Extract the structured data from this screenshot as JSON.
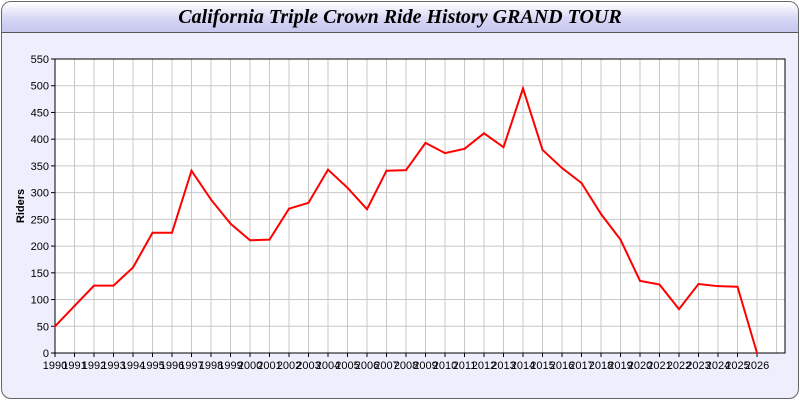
{
  "chart_data": {
    "type": "line",
    "title": "California Triple Crown Ride History GRAND TOUR",
    "xlabel": "",
    "ylabel": "Riders",
    "ylim": [
      0,
      550
    ],
    "yticks": [
      0,
      50,
      100,
      150,
      200,
      250,
      300,
      350,
      400,
      450,
      500,
      550
    ],
    "grid": true,
    "line_color": "#ff0000",
    "x": [
      1990,
      1991,
      1992,
      1993,
      1994,
      1995,
      1996,
      1997,
      1998,
      1999,
      2000,
      2001,
      2002,
      2003,
      2004,
      2005,
      2006,
      2007,
      2008,
      2009,
      2010,
      2011,
      2012,
      2013,
      2014,
      2015,
      2016,
      2017,
      2018,
      2019,
      2020,
      2021,
      2022,
      2023,
      2024,
      2025,
      2026
    ],
    "series": [
      {
        "values": [
          50,
          88,
          126,
          126,
          160,
          225,
          225,
          341,
          287,
          242,
          211,
          212,
          270,
          281,
          343,
          309,
          269,
          341,
          342,
          393,
          374,
          382,
          411,
          385,
          495,
          380,
          346,
          318,
          260,
          212,
          135,
          128,
          82,
          129,
          125,
          124,
          0
        ]
      }
    ]
  }
}
